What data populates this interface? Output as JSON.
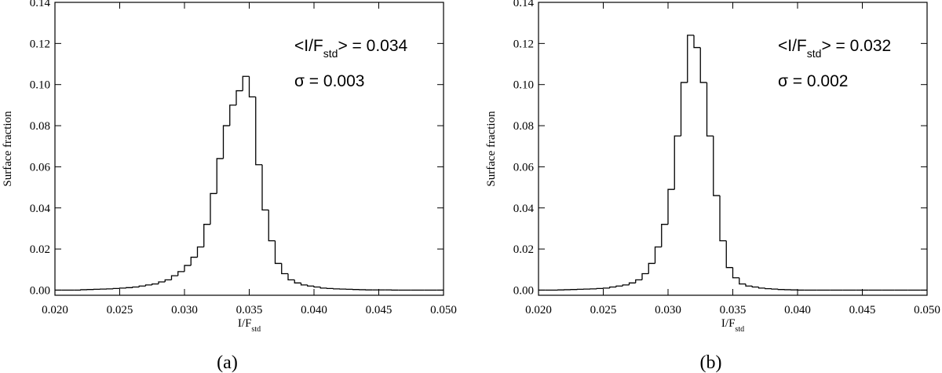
{
  "chart_data": [
    {
      "type": "histogram",
      "caption": "(a)",
      "ylabel": "Surface fraction",
      "xlabel": [
        "I/F",
        "std"
      ],
      "mean_label": [
        "<I/F",
        "std",
        "> = 0.034"
      ],
      "sigma_label": "σ = 0.003",
      "color": "#000000",
      "bins": [
        0.02,
        0.0205,
        0.021,
        0.0215,
        0.022,
        0.0225,
        0.023,
        0.0235,
        0.024,
        0.0245,
        0.025,
        0.0255,
        0.026,
        0.0265,
        0.027,
        0.0275,
        0.028,
        0.0285,
        0.029,
        0.0295,
        0.03,
        0.0305,
        0.031,
        0.0315,
        0.032,
        0.0325,
        0.033,
        0.0335,
        0.034,
        0.0345,
        0.035,
        0.0355,
        0.036,
        0.0365,
        0.037,
        0.0375,
        0.038,
        0.0385,
        0.039,
        0.0395,
        0.04,
        0.0405,
        0.041,
        0.0415,
        0.042,
        0.0425,
        0.043,
        0.0435,
        0.044,
        0.0445,
        0.045,
        0.0455,
        0.046,
        0.0465,
        0.047,
        0.0475,
        0.048,
        0.0485,
        0.049,
        0.0495,
        0.05
      ],
      "values": [
        0,
        0,
        0,
        0,
        0.0002,
        0.0003,
        0.0004,
        0.0005,
        0.0006,
        0.0008,
        0.001,
        0.0012,
        0.0015,
        0.002,
        0.0025,
        0.003,
        0.004,
        0.005,
        0.007,
        0.009,
        0.012,
        0.016,
        0.021,
        0.032,
        0.047,
        0.064,
        0.08,
        0.09,
        0.097,
        0.104,
        0.094,
        0.061,
        0.039,
        0.024,
        0.013,
        0.008,
        0.005,
        0.0035,
        0.0025,
        0.002,
        0.0015,
        0.001,
        0.0008,
        0.0006,
        0.0005,
        0.0004,
        0.0003,
        0.0002,
        0.0001,
        0.0001,
        0.0001,
        0.0001,
        0,
        0,
        0,
        0,
        0,
        0,
        0,
        0
      ],
      "xlim": [
        0.02,
        0.05
      ],
      "xticks": [
        {
          "value": 0.02,
          "label": "0.020"
        },
        {
          "value": 0.025,
          "label": "0.025"
        },
        {
          "value": 0.03,
          "label": "0.030"
        },
        {
          "value": 0.035,
          "label": "0.035"
        },
        {
          "value": 0.04,
          "label": "0.040"
        },
        {
          "value": 0.045,
          "label": "0.045"
        },
        {
          "value": 0.05,
          "label": "0.050"
        }
      ],
      "ylim": [
        -0.0025,
        0.14
      ],
      "yticks": [
        {
          "value": 0,
          "label": "0.00"
        },
        0.02,
        0.04,
        0.06,
        0.08,
        {
          "value": 0.1,
          "label": "0.10"
        },
        0.12,
        0.14
      ]
    },
    {
      "type": "histogram",
      "caption": "(b)",
      "ylabel": "Surface fraction",
      "xlabel": [
        "I/F",
        "std"
      ],
      "mean_label": [
        "<I/F",
        "std",
        "> = 0.032"
      ],
      "sigma_label": "σ = 0.002",
      "color": "#000000",
      "bins": [
        0.02,
        0.0205,
        0.021,
        0.0215,
        0.022,
        0.0225,
        0.023,
        0.0235,
        0.024,
        0.0245,
        0.025,
        0.0255,
        0.026,
        0.0265,
        0.027,
        0.0275,
        0.028,
        0.0285,
        0.029,
        0.0295,
        0.03,
        0.0305,
        0.031,
        0.0315,
        0.032,
        0.0325,
        0.033,
        0.0335,
        0.034,
        0.0345,
        0.035,
        0.0355,
        0.036,
        0.0365,
        0.037,
        0.0375,
        0.038,
        0.0385,
        0.039,
        0.0395,
        0.04,
        0.0405,
        0.041,
        0.0415,
        0.042,
        0.0425,
        0.043,
        0.0435,
        0.044,
        0.0445,
        0.045,
        0.0455,
        0.046,
        0.0465,
        0.047,
        0.0475,
        0.048,
        0.0485,
        0.049,
        0.0495,
        0.05
      ],
      "values": [
        0,
        0,
        0,
        0.0001,
        0.0002,
        0.0003,
        0.0004,
        0.0005,
        0.0006,
        0.0008,
        0.001,
        0.0015,
        0.002,
        0.0025,
        0.0035,
        0.005,
        0.008,
        0.013,
        0.021,
        0.032,
        0.049,
        0.075,
        0.101,
        0.124,
        0.118,
        0.101,
        0.075,
        0.046,
        0.024,
        0.011,
        0.006,
        0.003,
        0.002,
        0.0015,
        0.001,
        0.0007,
        0.0005,
        0.0003,
        0.0002,
        0.0001,
        0,
        0,
        0,
        0,
        0,
        0,
        0,
        0,
        0,
        0,
        0,
        0,
        0,
        0,
        0,
        0,
        0,
        0,
        0,
        0
      ],
      "xlim": [
        0.02,
        0.05
      ],
      "xticks": [
        {
          "value": 0.02,
          "label": "0.020"
        },
        {
          "value": 0.025,
          "label": "0.025"
        },
        {
          "value": 0.03,
          "label": "0.030"
        },
        {
          "value": 0.035,
          "label": "0.035"
        },
        {
          "value": 0.04,
          "label": "0.040"
        },
        {
          "value": 0.045,
          "label": "0.045"
        },
        {
          "value": 0.05,
          "label": "0.050"
        }
      ],
      "ylim": [
        -0.0025,
        0.14
      ],
      "yticks": [
        {
          "value": 0,
          "label": "0.00"
        },
        0.02,
        0.04,
        0.06,
        0.08,
        {
          "value": 0.1,
          "label": "0.10"
        },
        0.12,
        0.14
      ]
    }
  ]
}
